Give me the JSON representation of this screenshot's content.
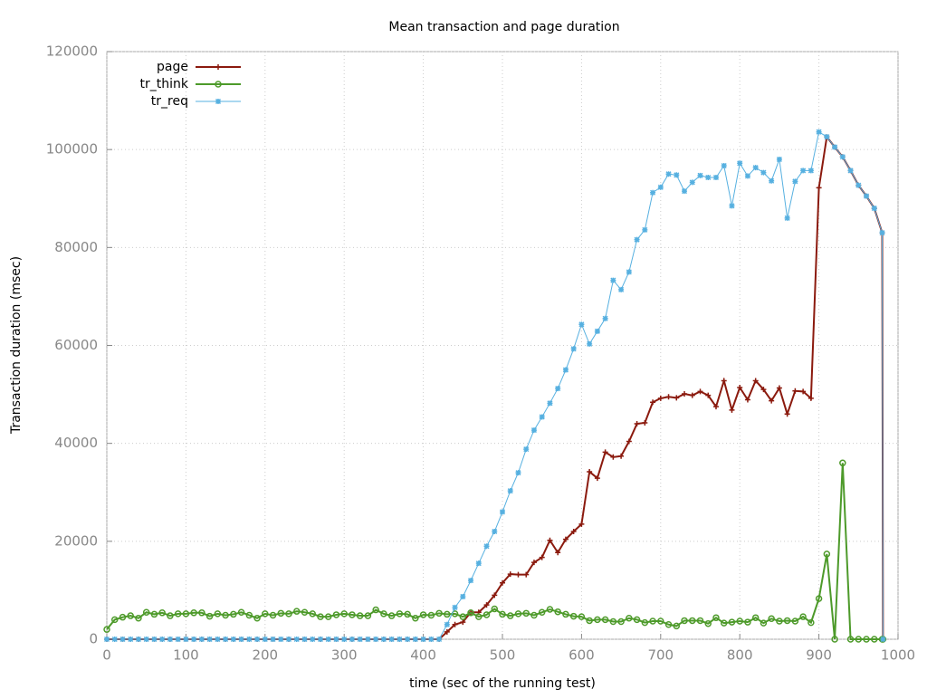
{
  "chart_data": {
    "type": "line",
    "title": "Mean transaction and page duration",
    "x_label": "time (sec of the running test)",
    "y_label": "Transaction duration (msec)",
    "x": [
      0,
      10,
      20,
      30,
      40,
      50,
      60,
      70,
      80,
      90,
      100,
      110,
      120,
      130,
      140,
      150,
      160,
      170,
      180,
      190,
      200,
      210,
      220,
      230,
      240,
      250,
      260,
      270,
      280,
      290,
      300,
      310,
      320,
      330,
      340,
      350,
      360,
      370,
      380,
      390,
      400,
      410,
      420,
      430,
      440,
      450,
      460,
      470,
      480,
      490,
      500,
      510,
      520,
      530,
      540,
      550,
      560,
      570,
      580,
      590,
      600,
      610,
      620,
      630,
      640,
      650,
      660,
      670,
      680,
      690,
      700,
      710,
      720,
      730,
      740,
      750,
      760,
      770,
      780,
      790,
      800,
      810,
      820,
      830,
      840,
      850,
      860,
      870,
      880,
      890,
      900,
      910,
      920,
      930,
      940,
      950,
      960,
      970,
      980,
      981
    ],
    "series": [
      {
        "name": "page",
        "color": "#8b1a0e",
        "marker": "plus",
        "values": [
          0,
          0,
          0,
          0,
          0,
          0,
          0,
          0,
          0,
          0,
          0,
          0,
          0,
          0,
          0,
          0,
          0,
          0,
          0,
          0,
          0,
          0,
          0,
          0,
          0,
          0,
          0,
          0,
          0,
          0,
          0,
          0,
          0,
          0,
          0,
          0,
          0,
          0,
          0,
          0,
          0,
          0,
          0,
          1500,
          3000,
          3500,
          5500,
          5500,
          7000,
          9000,
          11500,
          13300,
          13200,
          13200,
          15700,
          16700,
          20200,
          17700,
          20400,
          22000,
          23500,
          34200,
          32900,
          38200,
          37200,
          37400,
          40400,
          44000,
          44200,
          48400,
          49200,
          49500,
          49300,
          50100,
          49800,
          50600,
          49800,
          47500,
          52800,
          46800,
          51400,
          48900,
          52800,
          51000,
          48700,
          51300,
          46000,
          50700,
          50600,
          49200,
          92200,
          102600,
          100500,
          98500,
          95700,
          92700,
          90500,
          88000,
          83000,
          0
        ]
      },
      {
        "name": "tr_think",
        "color": "#4d9a2a",
        "marker": "circle",
        "values": [
          2000,
          4000,
          4500,
          4800,
          4300,
          5500,
          5100,
          5400,
          4800,
          5200,
          5200,
          5400,
          5400,
          4700,
          5200,
          4900,
          5100,
          5500,
          4900,
          4300,
          5200,
          4900,
          5300,
          5200,
          5700,
          5500,
          5200,
          4600,
          4600,
          5000,
          5200,
          5000,
          4800,
          4800,
          6000,
          5200,
          4800,
          5200,
          5100,
          4300,
          5000,
          4900,
          5300,
          5100,
          5200,
          4600,
          5400,
          4600,
          5000,
          6200,
          5100,
          4800,
          5200,
          5300,
          4900,
          5500,
          6100,
          5600,
          5100,
          4700,
          4600,
          3800,
          4000,
          4000,
          3600,
          3600,
          4300,
          4000,
          3400,
          3700,
          3700,
          3000,
          2700,
          3800,
          3800,
          3800,
          3200,
          4400,
          3300,
          3500,
          3700,
          3500,
          4400,
          3300,
          4200,
          3700,
          3800,
          3700,
          4600,
          3400,
          8300,
          17400,
          0,
          36000,
          0,
          0,
          0,
          0,
          0,
          0
        ]
      },
      {
        "name": "tr_req",
        "color": "#56b0e0",
        "marker": "star",
        "values": [
          0,
          0,
          0,
          0,
          0,
          0,
          0,
          0,
          0,
          0,
          0,
          0,
          0,
          0,
          0,
          0,
          0,
          0,
          0,
          0,
          0,
          0,
          0,
          0,
          0,
          0,
          0,
          0,
          0,
          0,
          0,
          0,
          0,
          0,
          0,
          0,
          0,
          0,
          0,
          0,
          0,
          0,
          0,
          3000,
          6500,
          8700,
          12000,
          15500,
          19000,
          22000,
          26000,
          30300,
          34000,
          38800,
          42700,
          45400,
          48200,
          51200,
          55000,
          59300,
          64300,
          60300,
          62900,
          65500,
          73300,
          71400,
          75000,
          81600,
          83600,
          91200,
          92300,
          95000,
          94800,
          91500,
          93300,
          94700,
          94300,
          94300,
          96700,
          88500,
          97200,
          94600,
          96300,
          95300,
          93600,
          98000,
          86000,
          93500,
          95700,
          95700,
          103600,
          102600,
          100500,
          98500,
          95700,
          92700,
          90500,
          88000,
          83000,
          0
        ]
      }
    ],
    "xlim": [
      0,
      1000
    ],
    "xticks": [
      0,
      100,
      200,
      300,
      400,
      500,
      600,
      700,
      800,
      900,
      1000
    ],
    "ylim": [
      0,
      120000
    ],
    "yticks": [
      0,
      20000,
      40000,
      60000,
      80000,
      100000,
      120000
    ],
    "grid": true,
    "legend": "top-left"
  }
}
